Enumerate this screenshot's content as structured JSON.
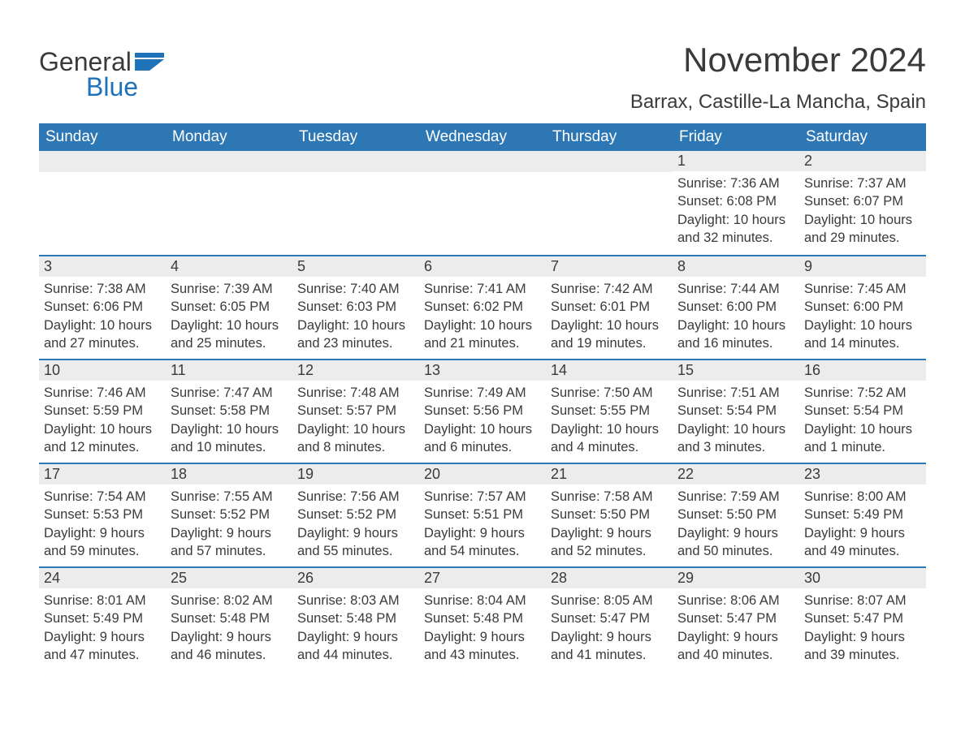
{
  "brand": {
    "word1": "General",
    "word2": "Blue"
  },
  "title": "November 2024",
  "location": "Barrax, Castille-La Mancha, Spain",
  "colors": {
    "header_bg": "#2e77b5",
    "header_text": "#ffffff",
    "daynum_bg": "#ececec",
    "text": "#3a3a3a",
    "accent": "#1f72b8",
    "row_border": "#2e77b5",
    "page_bg": "#ffffff"
  },
  "weekday_headers": [
    "Sunday",
    "Monday",
    "Tuesday",
    "Wednesday",
    "Thursday",
    "Friday",
    "Saturday"
  ],
  "weeks": [
    [
      null,
      null,
      null,
      null,
      null,
      {
        "n": "1",
        "sunrise": "Sunrise: 7:36 AM",
        "sunset": "Sunset: 6:08 PM",
        "day1": "Daylight: 10 hours",
        "day2": "and 32 minutes."
      },
      {
        "n": "2",
        "sunrise": "Sunrise: 7:37 AM",
        "sunset": "Sunset: 6:07 PM",
        "day1": "Daylight: 10 hours",
        "day2": "and 29 minutes."
      }
    ],
    [
      {
        "n": "3",
        "sunrise": "Sunrise: 7:38 AM",
        "sunset": "Sunset: 6:06 PM",
        "day1": "Daylight: 10 hours",
        "day2": "and 27 minutes."
      },
      {
        "n": "4",
        "sunrise": "Sunrise: 7:39 AM",
        "sunset": "Sunset: 6:05 PM",
        "day1": "Daylight: 10 hours",
        "day2": "and 25 minutes."
      },
      {
        "n": "5",
        "sunrise": "Sunrise: 7:40 AM",
        "sunset": "Sunset: 6:03 PM",
        "day1": "Daylight: 10 hours",
        "day2": "and 23 minutes."
      },
      {
        "n": "6",
        "sunrise": "Sunrise: 7:41 AM",
        "sunset": "Sunset: 6:02 PM",
        "day1": "Daylight: 10 hours",
        "day2": "and 21 minutes."
      },
      {
        "n": "7",
        "sunrise": "Sunrise: 7:42 AM",
        "sunset": "Sunset: 6:01 PM",
        "day1": "Daylight: 10 hours",
        "day2": "and 19 minutes."
      },
      {
        "n": "8",
        "sunrise": "Sunrise: 7:44 AM",
        "sunset": "Sunset: 6:00 PM",
        "day1": "Daylight: 10 hours",
        "day2": "and 16 minutes."
      },
      {
        "n": "9",
        "sunrise": "Sunrise: 7:45 AM",
        "sunset": "Sunset: 6:00 PM",
        "day1": "Daylight: 10 hours",
        "day2": "and 14 minutes."
      }
    ],
    [
      {
        "n": "10",
        "sunrise": "Sunrise: 7:46 AM",
        "sunset": "Sunset: 5:59 PM",
        "day1": "Daylight: 10 hours",
        "day2": "and 12 minutes."
      },
      {
        "n": "11",
        "sunrise": "Sunrise: 7:47 AM",
        "sunset": "Sunset: 5:58 PM",
        "day1": "Daylight: 10 hours",
        "day2": "and 10 minutes."
      },
      {
        "n": "12",
        "sunrise": "Sunrise: 7:48 AM",
        "sunset": "Sunset: 5:57 PM",
        "day1": "Daylight: 10 hours",
        "day2": "and 8 minutes."
      },
      {
        "n": "13",
        "sunrise": "Sunrise: 7:49 AM",
        "sunset": "Sunset: 5:56 PM",
        "day1": "Daylight: 10 hours",
        "day2": "and 6 minutes."
      },
      {
        "n": "14",
        "sunrise": "Sunrise: 7:50 AM",
        "sunset": "Sunset: 5:55 PM",
        "day1": "Daylight: 10 hours",
        "day2": "and 4 minutes."
      },
      {
        "n": "15",
        "sunrise": "Sunrise: 7:51 AM",
        "sunset": "Sunset: 5:54 PM",
        "day1": "Daylight: 10 hours",
        "day2": "and 3 minutes."
      },
      {
        "n": "16",
        "sunrise": "Sunrise: 7:52 AM",
        "sunset": "Sunset: 5:54 PM",
        "day1": "Daylight: 10 hours",
        "day2": "and 1 minute."
      }
    ],
    [
      {
        "n": "17",
        "sunrise": "Sunrise: 7:54 AM",
        "sunset": "Sunset: 5:53 PM",
        "day1": "Daylight: 9 hours",
        "day2": "and 59 minutes."
      },
      {
        "n": "18",
        "sunrise": "Sunrise: 7:55 AM",
        "sunset": "Sunset: 5:52 PM",
        "day1": "Daylight: 9 hours",
        "day2": "and 57 minutes."
      },
      {
        "n": "19",
        "sunrise": "Sunrise: 7:56 AM",
        "sunset": "Sunset: 5:52 PM",
        "day1": "Daylight: 9 hours",
        "day2": "and 55 minutes."
      },
      {
        "n": "20",
        "sunrise": "Sunrise: 7:57 AM",
        "sunset": "Sunset: 5:51 PM",
        "day1": "Daylight: 9 hours",
        "day2": "and 54 minutes."
      },
      {
        "n": "21",
        "sunrise": "Sunrise: 7:58 AM",
        "sunset": "Sunset: 5:50 PM",
        "day1": "Daylight: 9 hours",
        "day2": "and 52 minutes."
      },
      {
        "n": "22",
        "sunrise": "Sunrise: 7:59 AM",
        "sunset": "Sunset: 5:50 PM",
        "day1": "Daylight: 9 hours",
        "day2": "and 50 minutes."
      },
      {
        "n": "23",
        "sunrise": "Sunrise: 8:00 AM",
        "sunset": "Sunset: 5:49 PM",
        "day1": "Daylight: 9 hours",
        "day2": "and 49 minutes."
      }
    ],
    [
      {
        "n": "24",
        "sunrise": "Sunrise: 8:01 AM",
        "sunset": "Sunset: 5:49 PM",
        "day1": "Daylight: 9 hours",
        "day2": "and 47 minutes."
      },
      {
        "n": "25",
        "sunrise": "Sunrise: 8:02 AM",
        "sunset": "Sunset: 5:48 PM",
        "day1": "Daylight: 9 hours",
        "day2": "and 46 minutes."
      },
      {
        "n": "26",
        "sunrise": "Sunrise: 8:03 AM",
        "sunset": "Sunset: 5:48 PM",
        "day1": "Daylight: 9 hours",
        "day2": "and 44 minutes."
      },
      {
        "n": "27",
        "sunrise": "Sunrise: 8:04 AM",
        "sunset": "Sunset: 5:48 PM",
        "day1": "Daylight: 9 hours",
        "day2": "and 43 minutes."
      },
      {
        "n": "28",
        "sunrise": "Sunrise: 8:05 AM",
        "sunset": "Sunset: 5:47 PM",
        "day1": "Daylight: 9 hours",
        "day2": "and 41 minutes."
      },
      {
        "n": "29",
        "sunrise": "Sunrise: 8:06 AM",
        "sunset": "Sunset: 5:47 PM",
        "day1": "Daylight: 9 hours",
        "day2": "and 40 minutes."
      },
      {
        "n": "30",
        "sunrise": "Sunrise: 8:07 AM",
        "sunset": "Sunset: 5:47 PM",
        "day1": "Daylight: 9 hours",
        "day2": "and 39 minutes."
      }
    ]
  ]
}
